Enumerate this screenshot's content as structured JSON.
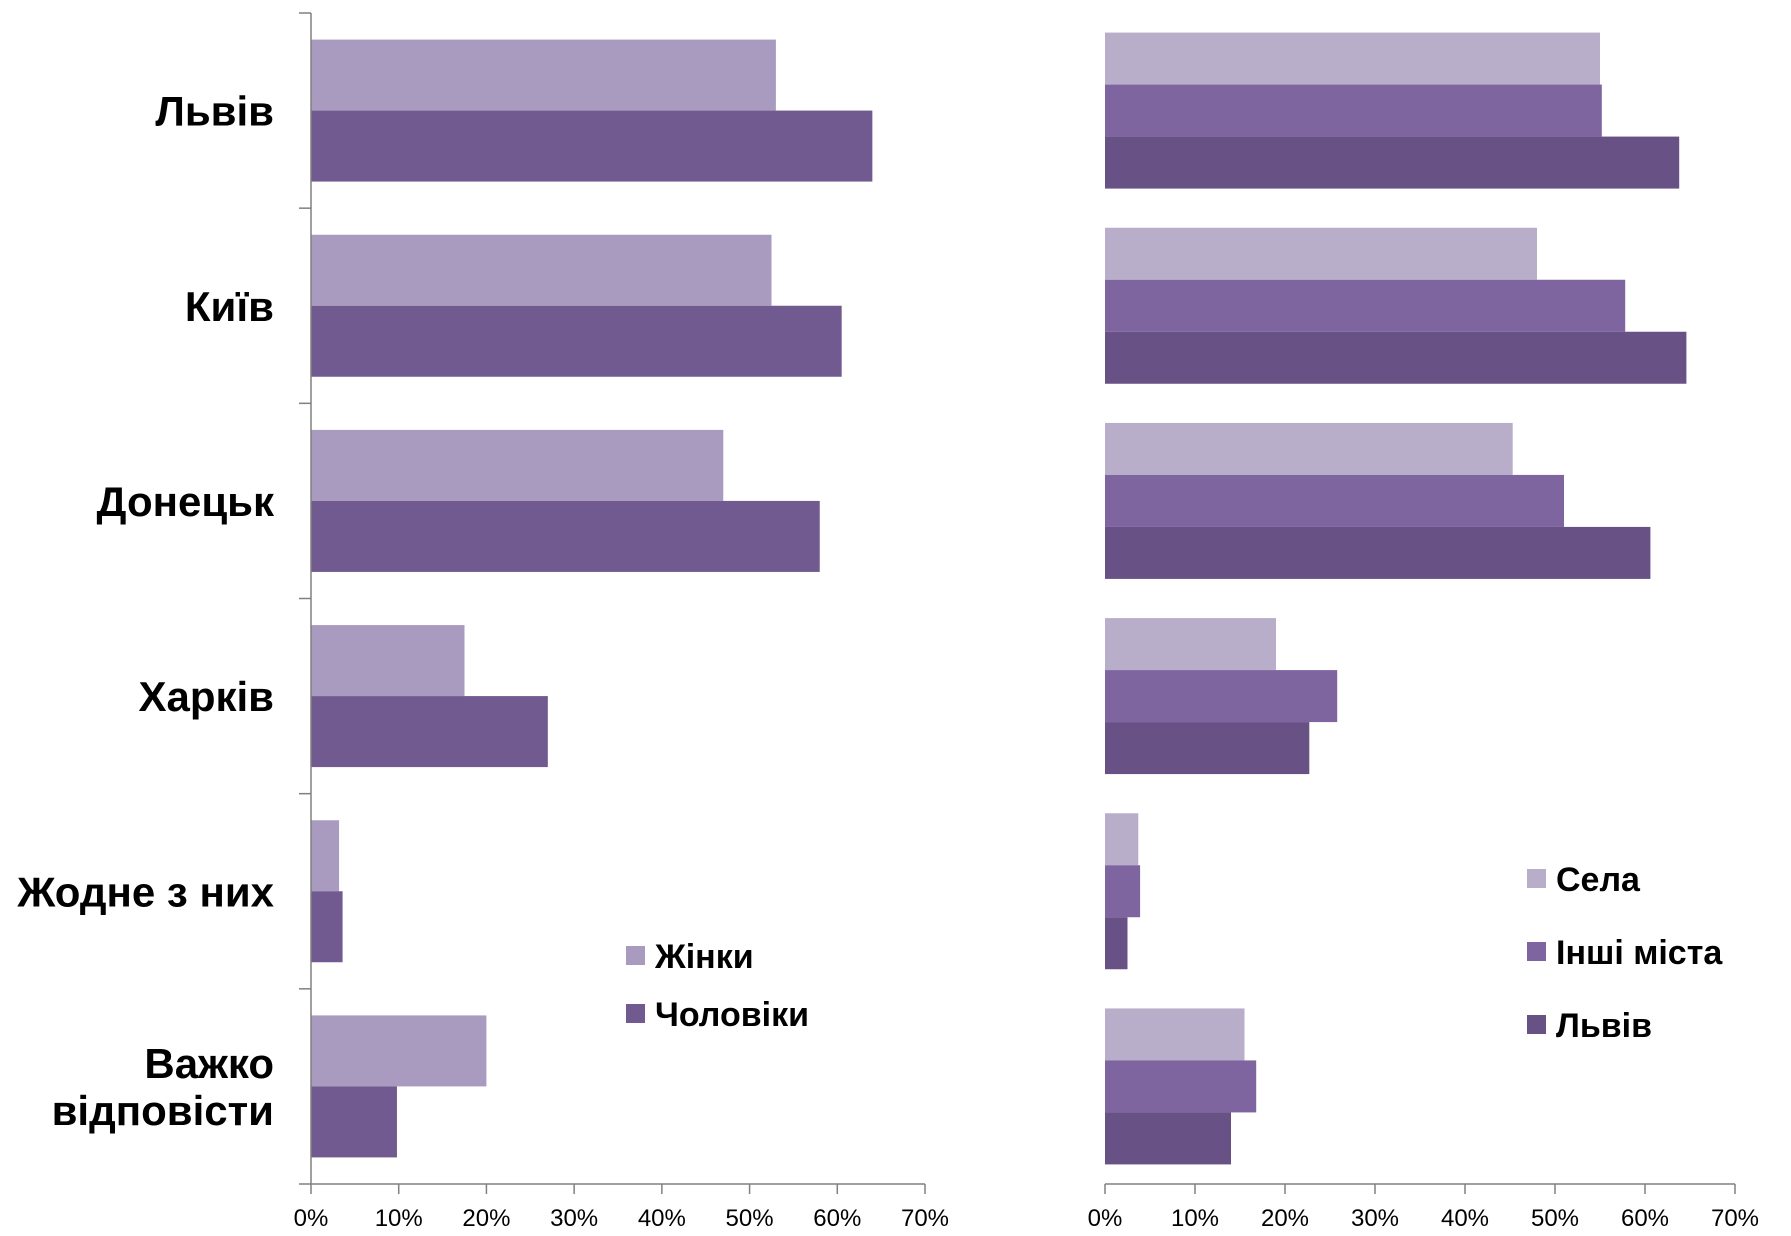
{
  "chart_data": [
    {
      "type": "bar",
      "orientation": "horizontal",
      "categories": [
        "Львів",
        "Київ",
        "Донецьк",
        "Харків",
        "Жодне з них",
        "Важко відповісти"
      ],
      "series": [
        {
          "name": "Жінки",
          "color": "#a99bbf",
          "values": [
            53,
            52.5,
            47,
            17.5,
            3.2,
            20
          ]
        },
        {
          "name": "Чоловіки",
          "color": "#715a8f",
          "values": [
            64,
            60.5,
            58,
            27,
            3.6,
            9.8
          ]
        }
      ],
      "xlim": [
        0,
        70
      ],
      "xticks": [
        "0%",
        "10%",
        "20%",
        "30%",
        "40%",
        "50%",
        "60%",
        "70%"
      ],
      "legend_position": "bottom-right",
      "grid": false
    },
    {
      "type": "bar",
      "orientation": "horizontal",
      "categories": [
        "Львів",
        "Київ",
        "Донецьк",
        "Харків",
        "Жодне з них",
        "Важко відповісти"
      ],
      "series": [
        {
          "name": "Села",
          "color": "#b8aeca",
          "values": [
            55,
            48,
            45.3,
            19,
            3.7,
            15.5
          ]
        },
        {
          "name": "Інші міста",
          "color": "#7e65a0",
          "values": [
            55.2,
            57.8,
            51,
            25.8,
            3.9,
            16.8
          ]
        },
        {
          "name": "Львів",
          "color": "#685185",
          "values": [
            63.8,
            64.6,
            60.6,
            22.7,
            2.5,
            14
          ]
        }
      ],
      "xlim": [
        0,
        70
      ],
      "xticks": [
        "0%",
        "10%",
        "20%",
        "30%",
        "40%",
        "50%",
        "60%",
        "70%"
      ],
      "legend_position": "right",
      "grid": false
    }
  ]
}
